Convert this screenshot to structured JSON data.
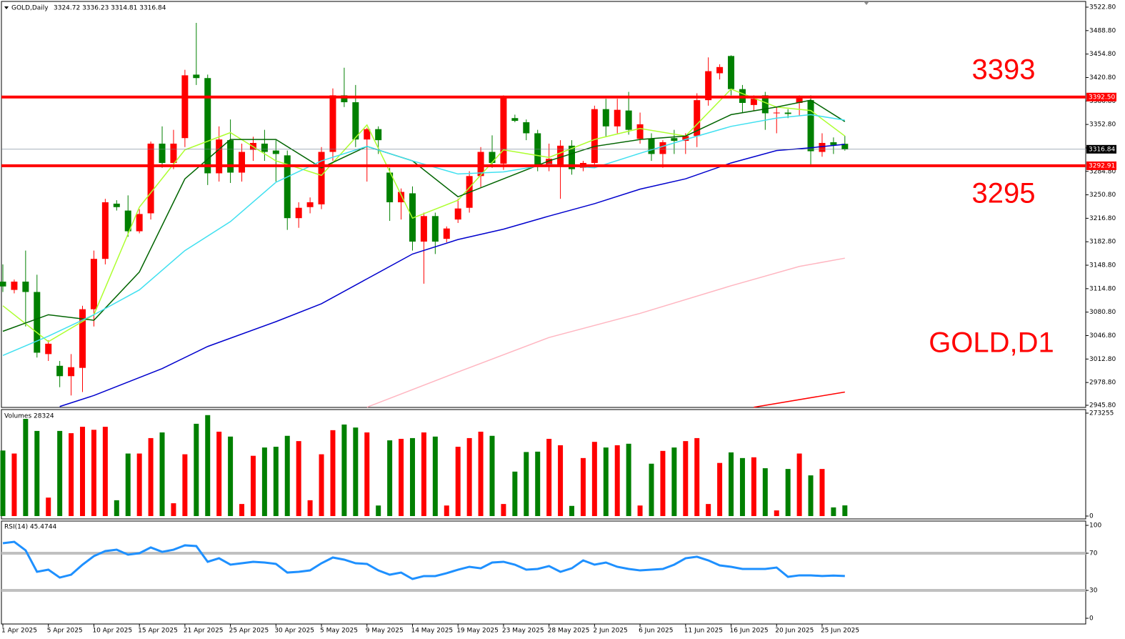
{
  "chart_data": [
    {
      "type": "candlestick",
      "title": "GOLD,Daily",
      "subtitle": "3324.72 3336.23 3314.81 3316.84",
      "up_color": "#ff0000",
      "down_color": "#008000",
      "categories": [
        "1 Apr 2025",
        null,
        null,
        null,
        "5 Apr 2025",
        null,
        null,
        null,
        "10 Apr 2025",
        null,
        null,
        null,
        "15 Apr 2025",
        null,
        null,
        null,
        "21 Apr 2025",
        null,
        null,
        null,
        "25 Apr 2025",
        null,
        null,
        null,
        "30 Apr 2025",
        null,
        null,
        null,
        "5 May 2025",
        null,
        null,
        null,
        "9 May 2025",
        null,
        null,
        null,
        "14 May 2025",
        null,
        null,
        null,
        "19 May 2025",
        null,
        null,
        null,
        "23 May 2025",
        null,
        null,
        null,
        "28 May 2025",
        null,
        null,
        null,
        "2 Jun 2025",
        null,
        null,
        null,
        "6 Jun 2025",
        null,
        null,
        null,
        "11 Jun 2025",
        null,
        null,
        null,
        "16 Jun 2025",
        null,
        null,
        null,
        "20 Jun 2025",
        null,
        null,
        null,
        "25 Jun 2025",
        null,
        null
      ],
      "open": [
        3125,
        3113,
        3125,
        3110,
        3020,
        3003,
        2988,
        3000,
        3085,
        3158,
        3238,
        3228,
        3198,
        3224,
        3325,
        3297,
        3333,
        3425,
        3420,
        3282,
        3330,
        3283,
        3316,
        3325,
        3315,
        3308,
        3217,
        3233,
        3237,
        3313,
        3395,
        3385,
        3331,
        3346,
        3283,
        3240,
        3253,
        3183,
        3220,
        3187,
        3215,
        3232,
        3278,
        3313,
        3296,
        3362,
        3356,
        3340,
        3293,
        3294,
        3322,
        3290,
        3297,
        3375,
        3350,
        3373,
        3332,
        3332,
        3310,
        3333,
        3329,
        3336,
        3388,
        3427,
        3452,
        3404,
        3381,
        3395,
        3369,
        3370,
        3384,
        3388,
        3313,
        3327,
        3324.72
      ],
      "high": [
        3150,
        3128,
        3170,
        3135,
        3040,
        3010,
        3020,
        3090,
        3170,
        3245,
        3243,
        3250,
        3230,
        3328,
        3350,
        3345,
        3432,
        3500,
        3425,
        3350,
        3360,
        3325,
        3335,
        3345,
        3330,
        3315,
        3240,
        3247,
        3320,
        3405,
        3435,
        3410,
        3348,
        3350,
        3290,
        3260,
        3263,
        3225,
        3225,
        3205,
        3245,
        3285,
        3320,
        3337,
        3395,
        3367,
        3360,
        3345,
        3325,
        3330,
        3330,
        3300,
        3380,
        3390,
        3390,
        3400,
        3370,
        3340,
        3330,
        3345,
        3340,
        3398,
        3450,
        3440,
        3453,
        3410,
        3395,
        3400,
        3378,
        3375,
        3395,
        3395,
        3340,
        3334,
        3336.23
      ],
      "low": [
        3110,
        3108,
        3060,
        3015,
        3010,
        2972,
        2960,
        2965,
        3060,
        3150,
        3228,
        3190,
        3195,
        3215,
        3290,
        3288,
        3320,
        3410,
        3265,
        3270,
        3268,
        3270,
        3300,
        3300,
        3270,
        3200,
        3203,
        3224,
        3230,
        3300,
        3378,
        3320,
        3270,
        3310,
        3213,
        3215,
        3170,
        3122,
        3165,
        3182,
        3210,
        3225,
        3262,
        3290,
        3287,
        3356,
        3330,
        3285,
        3285,
        3245,
        3280,
        3285,
        3290,
        3335,
        3340,
        3338,
        3325,
        3300,
        3290,
        3310,
        3310,
        3320,
        3380,
        3418,
        3395,
        3370,
        3372,
        3345,
        3340,
        3362,
        3365,
        3295,
        3306,
        3310,
        3314.81
      ],
      "close": [
        3118,
        3125,
        3110,
        3022,
        3035,
        2988,
        3001,
        3085,
        3158,
        3240,
        3233,
        3198,
        3223,
        3325,
        3297,
        3325,
        3424,
        3420,
        3282,
        3331,
        3283,
        3313,
        3326,
        3313,
        3310,
        3217,
        3232,
        3240,
        3313,
        3395,
        3385,
        3331,
        3346,
        3330,
        3240,
        3255,
        3183,
        3220,
        3183,
        3202,
        3231,
        3278,
        3313,
        3297,
        3392,
        3358,
        3340,
        3293,
        3303,
        3322,
        3288,
        3297,
        3375,
        3350,
        3374,
        3345,
        3353,
        3310,
        3327,
        3329,
        3336,
        3388,
        3430,
        3436,
        3404,
        3384,
        3390,
        3369,
        3370,
        3368,
        3392,
        3314,
        3326,
        3323,
        3316.84
      ],
      "lines": [
        {
          "color": "#adff2f",
          "x": [
            0,
            4,
            8,
            12,
            16,
            20,
            24,
            28,
            32,
            36,
            40,
            44,
            48,
            52,
            56,
            60,
            64,
            68,
            71,
            74
          ],
          "values": [
            3090,
            3038,
            3077,
            3233,
            3316,
            3341,
            3300,
            3279,
            3352,
            3217,
            3243,
            3316,
            3305,
            3331,
            3347,
            3336,
            3404,
            3378,
            3373,
            3336
          ]
        },
        {
          "color": "#006400",
          "x": [
            0,
            4,
            8,
            12,
            16,
            20,
            24,
            28,
            32,
            36,
            40,
            44,
            48,
            52,
            56,
            60,
            64,
            68,
            71,
            74
          ],
          "values": [
            3053,
            3077,
            3069,
            3139,
            3274,
            3331,
            3331,
            3290,
            3321,
            3300,
            3248,
            3274,
            3300,
            3321,
            3331,
            3336,
            3367,
            3378,
            3388,
            3357
          ]
        },
        {
          "color": "#40e0f0",
          "x": [
            0,
            4,
            8,
            12,
            16,
            20,
            24,
            28,
            32,
            36,
            40,
            44,
            48,
            52,
            56,
            60,
            64,
            68,
            71,
            74
          ],
          "values": [
            3018,
            3046,
            3077,
            3113,
            3170,
            3212,
            3269,
            3300,
            3321,
            3300,
            3281,
            3284,
            3295,
            3290,
            3311,
            3331,
            3350,
            3362,
            3367,
            3359
          ]
        },
        {
          "color": "#0000cd",
          "x": [
            5,
            8,
            14,
            18,
            24,
            28,
            32,
            36,
            40,
            44,
            48,
            52,
            56,
            60,
            64,
            68,
            71,
            74
          ],
          "values": [
            2944,
            2960,
            2999,
            3031,
            3067,
            3093,
            3129,
            3165,
            3186,
            3201,
            3220,
            3238,
            3259,
            3274,
            3297,
            3315,
            3319,
            3324
          ]
        },
        {
          "color": "#ffb6c1",
          "x": [
            32,
            40,
            48,
            56,
            64,
            70,
            74
          ],
          "values": [
            2943,
            2994,
            3044,
            3079,
            3119,
            3147,
            3159
          ]
        },
        {
          "color": "#ff0000",
          "x": [
            66,
            74
          ],
          "values": [
            2943,
            2965
          ]
        }
      ],
      "levels": [
        {
          "value": 3392.5,
          "label": "3392.50",
          "color": "#ff0000"
        },
        {
          "value": 3292.91,
          "label": "3292.91",
          "color": "#ff0000"
        },
        {
          "value": 3316.84,
          "label": "3316.84",
          "color": "#000000"
        }
      ],
      "annotations": [
        "3393",
        "3295",
        "GOLD,D1"
      ],
      "ylim": [
        2945.8,
        3522.8
      ],
      "yticks": [
        {
          "value": 3522.8,
          "label": "3522.80"
        },
        {
          "value": 3488.8,
          "label": "3488.80"
        },
        {
          "value": 3454.8,
          "label": "3454.80"
        },
        {
          "value": 3420.8,
          "label": "3420.80"
        },
        {
          "value": 3386.8,
          "label": "3386.80"
        },
        {
          "value": 3352.8,
          "label": "3352.80"
        },
        {
          "value": 3318.8,
          "label": "3318.80"
        },
        {
          "value": 3284.8,
          "label": "3284.80"
        },
        {
          "value": 3250.8,
          "label": "3250.80"
        },
        {
          "value": 3216.8,
          "label": "3216.80"
        },
        {
          "value": 3182.8,
          "label": "3182.80"
        },
        {
          "value": 3148.8,
          "label": "3148.80"
        },
        {
          "value": 3114.8,
          "label": "3114.80"
        },
        {
          "value": 3080.8,
          "label": "3080.80"
        },
        {
          "value": 3046.8,
          "label": "3046.80"
        },
        {
          "value": 3012.8,
          "label": "3012.80"
        },
        {
          "value": 2978.8,
          "label": "2978.80"
        },
        {
          "value": 2945.8,
          "label": "2945.80"
        }
      ]
    },
    {
      "type": "bar",
      "title": "Volumes 28324",
      "values": [
        174000,
        166000,
        258000,
        226000,
        49000,
        226000,
        220000,
        237000,
        229000,
        237000,
        42000,
        166000,
        166000,
        207000,
        222000,
        34000,
        164000,
        245000,
        268000,
        224000,
        211000,
        32000,
        160000,
        182000,
        184000,
        213000,
        199000,
        42000,
        164000,
        228000,
        243000,
        235000,
        222000,
        28000,
        201000,
        205000,
        207000,
        222000,
        211000,
        28000,
        184000,
        207000,
        224000,
        213000,
        32000,
        118000,
        170000,
        171000,
        205000,
        188000,
        27000,
        154000,
        197000,
        182000,
        188000,
        192000,
        28000,
        139000,
        173000,
        182000,
        199000,
        207000,
        32000,
        141000,
        169000,
        154000,
        156000,
        127000,
        15000,
        125000,
        166000,
        108000,
        125000,
        23000,
        28324
      ],
      "ylim": [
        0,
        273255
      ],
      "yticks": [
        0,
        273255
      ]
    },
    {
      "type": "line",
      "title": "RSI(14) 45.4744",
      "color": "#1e90ff",
      "values": [
        80.8,
        82.3,
        73.1,
        50,
        52.3,
        43.8,
        46.9,
        57.7,
        66.9,
        72.3,
        73.8,
        68.5,
        70,
        76.2,
        71.5,
        73.8,
        78.5,
        77.7,
        60.8,
        64.6,
        57.7,
        59.2,
        60.8,
        60,
        58.5,
        49.2,
        50,
        51.5,
        59.2,
        65.4,
        63.1,
        59.2,
        58.5,
        51.5,
        46.9,
        49.2,
        42.3,
        45.4,
        45.4,
        48.5,
        52.3,
        55.4,
        53.8,
        60,
        60.8,
        57.7,
        52.3,
        53.1,
        56.2,
        50,
        53.8,
        62.3,
        57.7,
        60,
        55.4,
        53.1,
        51.5,
        52.3,
        53.1,
        57.7,
        64.6,
        66.2,
        62.3,
        56.9,
        55.4,
        53.1,
        53.1,
        53.1,
        54.6,
        44.6,
        46.2,
        46.2,
        45.5,
        46.0,
        45.4744
      ],
      "levels": [
        70,
        30
      ],
      "ylim": [
        0,
        100
      ],
      "yticks": [
        100,
        70,
        30,
        0
      ]
    }
  ]
}
